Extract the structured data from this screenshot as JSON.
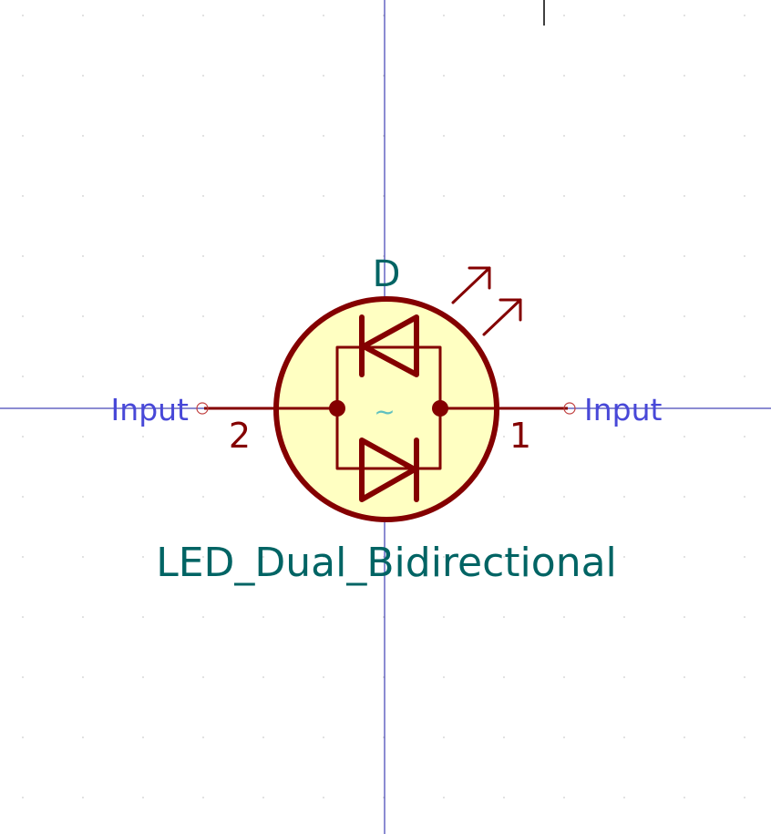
{
  "symbol": {
    "reference": "D",
    "value": "LED_Dual_Bidirectional",
    "center_marker": "~",
    "pins": [
      {
        "number": "2",
        "type": "Input"
      },
      {
        "number": "1",
        "type": "Input"
      }
    ]
  },
  "colors": {
    "background": "#ffffff",
    "axis": "#1a1aa6",
    "grid_dot": "#d8d8d8",
    "body_outline": "#840000",
    "body_fill": "#ffffc2",
    "field_text": "#006464",
    "pin_type_text": "#4848d8",
    "center_marker": "#5fc0c0"
  }
}
